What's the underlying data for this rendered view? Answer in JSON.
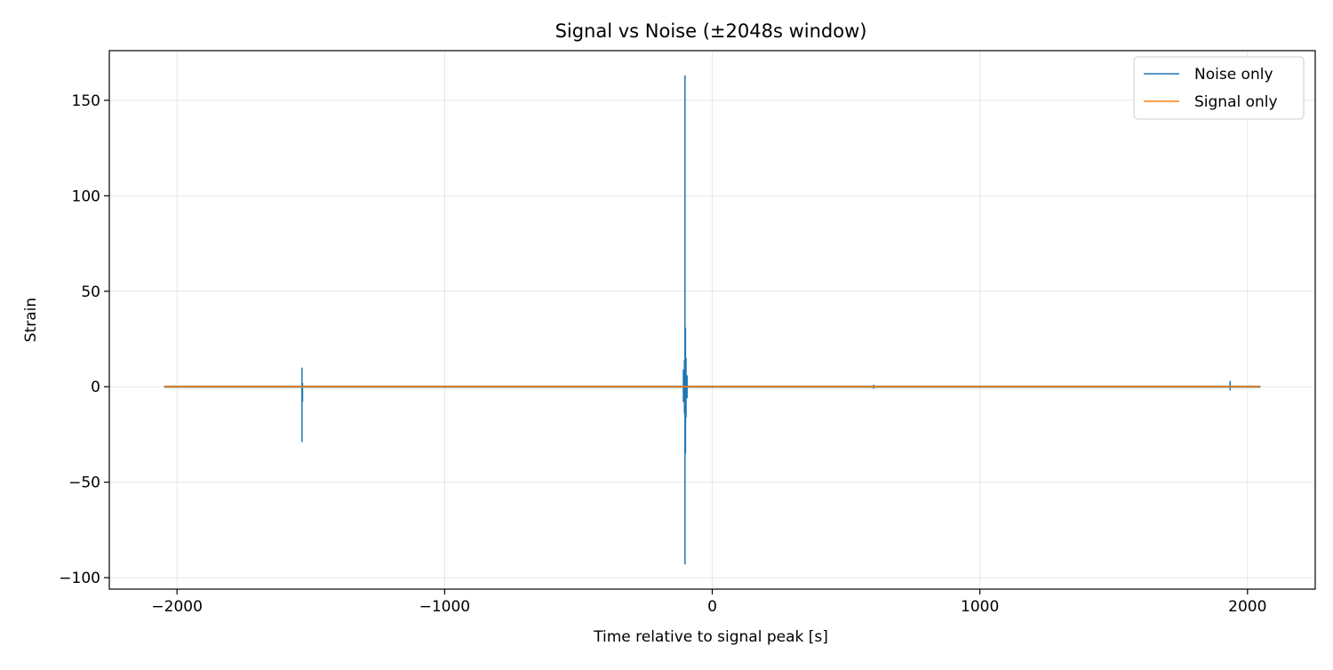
{
  "chart_data": {
    "type": "line",
    "title": "Signal vs Noise (±2048s window)",
    "xlabel": "Time relative to signal peak [s]",
    "ylabel": "Strain",
    "xlim": [
      -2253,
      2253
    ],
    "ylim": [
      -106,
      176
    ],
    "xticks": [
      -2000,
      -1000,
      0,
      1000,
      2000
    ],
    "xtick_labels": [
      "−2000",
      "−1000",
      "0",
      "1000",
      "2000"
    ],
    "yticks": [
      -100,
      -50,
      0,
      50,
      100,
      150
    ],
    "ytick_labels": [
      "−100",
      "−50",
      "0",
      "50",
      "100",
      "150"
    ],
    "grid": true,
    "legend_position": "top-right",
    "series": [
      {
        "name": "Noise only",
        "color": "#1f77b4",
        "x_range": [
          -2048,
          2048
        ],
        "baseline": 0,
        "spikes": [
          {
            "x": -1533,
            "y": [
              -29,
              10
            ]
          },
          {
            "x": -1531,
            "y": [
              -8,
              2
            ]
          },
          {
            "x": -108,
            "y": [
              -8,
              9
            ]
          },
          {
            "x": -104,
            "y": [
              -14,
              14
            ]
          },
          {
            "x": -102,
            "y": [
              -93,
              163
            ]
          },
          {
            "x": -100,
            "y": [
              -35,
              31
            ]
          },
          {
            "x": -98,
            "y": [
              -16,
              15
            ]
          },
          {
            "x": -94,
            "y": [
              -6,
              6
            ]
          },
          {
            "x": 603,
            "y": [
              -1,
              1
            ]
          },
          {
            "x": 1935,
            "y": [
              -2,
              3
            ]
          }
        ]
      },
      {
        "name": "Signal only",
        "color": "#ff7f0e",
        "x_range": [
          -2048,
          2048
        ],
        "baseline": 0,
        "spikes": []
      }
    ]
  }
}
